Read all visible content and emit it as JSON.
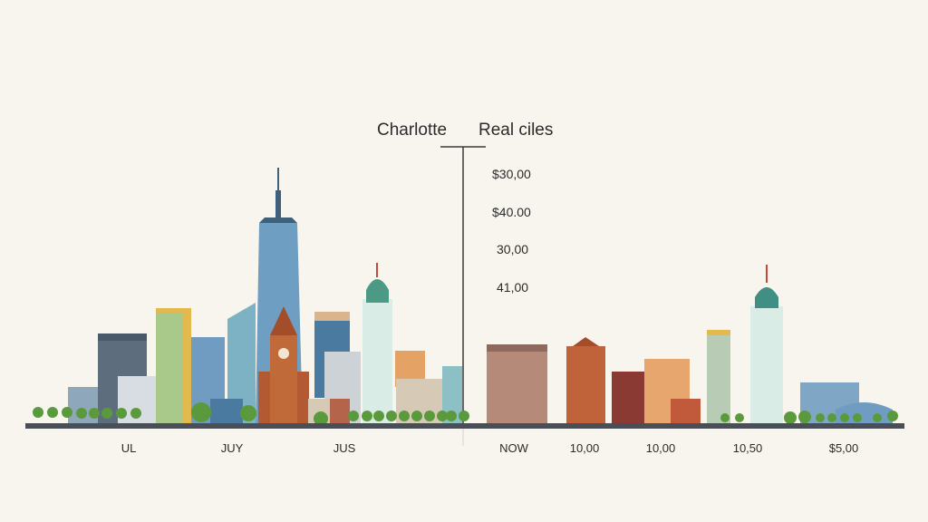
{
  "header": {
    "left_title": "Charlotte",
    "right_title": "Real ciles"
  },
  "values": [
    "$30,00",
    "$40.00",
    "30,00",
    "41,00"
  ],
  "axis_labels": [
    "UL",
    "JUY",
    "JUS",
    "NOW",
    "10,00",
    "10,00",
    "10,50",
    "$5,00"
  ],
  "colors": {
    "background": "#f8f5ee",
    "ground": "#4a4f57",
    "tree": "#5b9a3c",
    "glass_blue": "#7fa6c4",
    "brick": "#b35a32",
    "teal": "#3f8f84"
  }
}
